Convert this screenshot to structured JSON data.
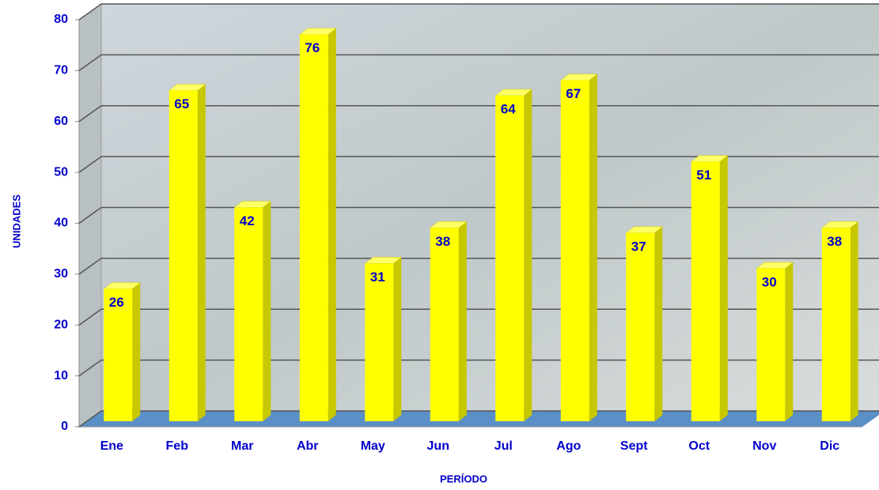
{
  "chart_data": {
    "type": "bar3d",
    "x_label": "PERÍODO",
    "y_label": "UNIDADES",
    "categories": [
      "Ene",
      "Feb",
      "Mar",
      "Abr",
      "May",
      "Jun",
      "Jul",
      "Ago",
      "Sept",
      "Oct",
      "Nov",
      "Dic"
    ],
    "values": [
      26,
      65,
      42,
      76,
      31,
      38,
      64,
      67,
      37,
      51,
      30,
      38
    ],
    "color": "#ffff00",
    "label_color": "#0000cc",
    "floor_color": "#5b8fc7",
    "ylim": [
      0,
      80
    ],
    "yticks": [
      0,
      10,
      20,
      30,
      40,
      50,
      60,
      70,
      80
    ],
    "grid": true
  }
}
